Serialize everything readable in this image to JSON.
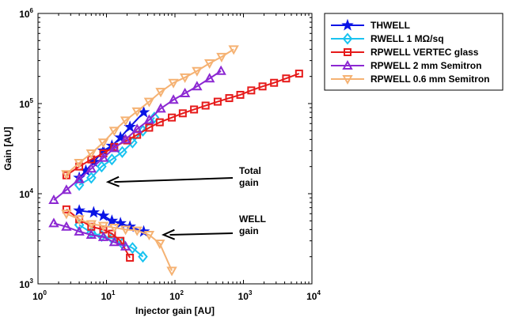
{
  "chart_data": {
    "type": "line",
    "title": "",
    "xlabel": "Injector gain [AU]",
    "ylabel": "Gain [AU]",
    "xscale": "log",
    "yscale": "log",
    "xlim": [
      1,
      10000
    ],
    "ylim": [
      1000,
      1000000
    ],
    "x_ticks": [
      {
        "value": 1,
        "base": "10",
        "exp": "0"
      },
      {
        "value": 10,
        "base": "10",
        "exp": "1"
      },
      {
        "value": 100,
        "base": "10",
        "exp": "2"
      },
      {
        "value": 1000,
        "base": "10",
        "exp": "3"
      },
      {
        "value": 10000,
        "base": "10",
        "exp": "4"
      }
    ],
    "y_ticks": [
      {
        "value": 1000,
        "base": "10",
        "exp": "3"
      },
      {
        "value": 10000,
        "base": "10",
        "exp": "4"
      },
      {
        "value": 100000,
        "base": "10",
        "exp": "5"
      },
      {
        "value": 1000000,
        "base": "10",
        "exp": "6"
      }
    ],
    "legend_position": "outside-top-right",
    "series": [
      {
        "name": "THWELL",
        "color": "#0a14e6",
        "marker": "star",
        "total": {
          "x": [
            4,
            5,
            6.5,
            9,
            12,
            16,
            22,
            35
          ],
          "y": [
            15000,
            18000,
            22500,
            30000,
            34000,
            42000,
            55000,
            80000
          ]
        },
        "well": {
          "x": [
            4,
            6.5,
            9,
            12,
            16,
            22,
            35
          ],
          "y": [
            6500,
            6200,
            5700,
            5000,
            4700,
            4300,
            3800
          ]
        }
      },
      {
        "name": "RWELL 1 MΩ/sq",
        "color": "#19c3f0",
        "marker": "diamond",
        "total": {
          "x": [
            4,
            6,
            8.5,
            12,
            17,
            24,
            34,
            50
          ],
          "y": [
            12500,
            15000,
            20000,
            24000,
            29000,
            37000,
            50000,
            70000
          ]
        },
        "well": {
          "x": [
            4,
            6,
            8.5,
            12,
            17,
            24,
            34
          ],
          "y": [
            4500,
            3700,
            3400,
            3200,
            2800,
            2500,
            2000
          ]
        }
      },
      {
        "name": "RPWELL VERTEC glass",
        "color": "#e61a1a",
        "marker": "square",
        "total": {
          "x": [
            2.6,
            4,
            6,
            9,
            13,
            20,
            28,
            42,
            60,
            90,
            130,
            190,
            280,
            420,
            620,
            900,
            1300,
            1900,
            2800,
            4200,
            6500
          ],
          "y": [
            16000,
            20000,
            24000,
            28000,
            33000,
            39000,
            45000,
            54000,
            62000,
            70000,
            78000,
            86000,
            95000,
            105000,
            115000,
            125000,
            140000,
            155000,
            170000,
            190000,
            215000
          ]
        },
        "well": {
          "x": [
            2.6,
            4,
            6,
            9,
            12,
            16,
            22
          ],
          "y": [
            6700,
            5200,
            4300,
            4000,
            3600,
            3000,
            1950
          ]
        }
      },
      {
        "name": "RPWELL 2 mm Semitron",
        "color": "#8c28d2",
        "marker": "triangle-up",
        "total": {
          "x": [
            1.7,
            2.6,
            4,
            6,
            9,
            13,
            19,
            28,
            42,
            62,
            95,
            140,
            210,
            320,
            470
          ],
          "y": [
            8500,
            11000,
            14500,
            19000,
            25000,
            32000,
            40000,
            52000,
            66000,
            88000,
            110000,
            130000,
            155000,
            190000,
            230000
          ]
        },
        "well": {
          "x": [
            1.7,
            2.6,
            4,
            6,
            9,
            13,
            19
          ],
          "y": [
            4700,
            4300,
            3800,
            3500,
            3300,
            2900,
            2600
          ]
        }
      },
      {
        "name": "RPWELL 0.6 mm Semitron",
        "color": "#f5b273",
        "marker": "triangle-down",
        "total": {
          "x": [
            2.6,
            4,
            6,
            9,
            13,
            19,
            28,
            42,
            62,
            95,
            140,
            210,
            320,
            480,
            720
          ],
          "y": [
            16500,
            22000,
            28000,
            37000,
            50000,
            65000,
            82000,
            105000,
            135000,
            170000,
            195000,
            230000,
            280000,
            330000,
            400000
          ]
        },
        "well": {
          "x": [
            2.6,
            4,
            6,
            9,
            13,
            19,
            28,
            42,
            60,
            90
          ],
          "y": [
            6000,
            5200,
            4600,
            4400,
            4200,
            4000,
            3900,
            3500,
            2800,
            1400
          ]
        }
      }
    ],
    "annotations": [
      {
        "lines": [
          "Total",
          "gain"
        ],
        "x": 10.5,
        "y": 13500
      },
      {
        "lines": [
          "WELL",
          "gain"
        ],
        "x": 68,
        "y": 3500
      }
    ]
  }
}
